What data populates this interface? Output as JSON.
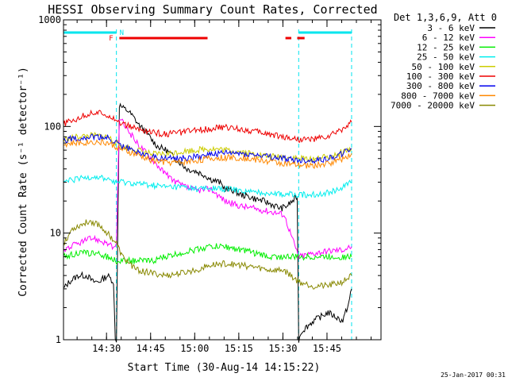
{
  "colors": {
    "axis": "#000000",
    "cyan_marker": "#00e5ee",
    "flag_red": "#ee0000"
  },
  "chart_data": {
    "type": "line",
    "title": "HESSI Observing Summary Count Rates, Corrected",
    "xlabel": "Start Time (30-Aug-14 14:15:22)",
    "ylabel": "Corrected Count Rate (s⁻¹ detector⁻¹)",
    "yscale": "log",
    "ylim": [
      1,
      1000
    ],
    "y_ticks": [
      1,
      10,
      100,
      1000
    ],
    "y_tick_labels": [
      "1",
      "10",
      "100",
      "1000"
    ],
    "x_unit": "minutes since 14:15:22",
    "xlim": [
      0,
      108
    ],
    "x_ticks": [
      14.63,
      29.63,
      44.63,
      59.63,
      74.63,
      89.63
    ],
    "x_tick_labels": [
      "14:30",
      "14:45",
      "15:00",
      "15:15",
      "15:30",
      "15:45"
    ],
    "legend_title": "Det 1,3,6,9, Att 0",
    "legend_position": "outside-right",
    "footer": "25-Jan-2017 00:31",
    "flags": {
      "F_label": "F",
      "N_label": "N",
      "flare_segments": [
        [
          19,
          49
        ],
        [
          75.5,
          77.5
        ],
        [
          79.5,
          82
        ]
      ],
      "night_segments": [
        [
          0,
          18
        ],
        [
          80,
          98
        ]
      ],
      "night_boundaries": [
        18,
        80,
        98
      ]
    },
    "series": [
      {
        "name": "3 - 6 keV",
        "color": "#000000",
        "x": [
          0,
          2,
          5,
          8,
          10,
          12,
          15,
          17,
          17.6,
          18,
          19,
          20,
          22,
          24,
          26,
          28,
          30,
          32,
          35,
          38,
          40,
          42,
          45,
          48,
          50,
          53,
          55,
          58,
          60,
          63,
          65,
          68,
          70,
          72,
          74,
          76,
          78,
          79.5,
          80,
          81,
          85,
          90,
          95,
          97,
          98
        ],
        "y": [
          3,
          3.5,
          4,
          4,
          3.5,
          3.5,
          4,
          3.5,
          1,
          1,
          160,
          150,
          140,
          120,
          100,
          90,
          75,
          65,
          60,
          50,
          45,
          40,
          38,
          35,
          32,
          30,
          26,
          25,
          23,
          22,
          21,
          20,
          19,
          18,
          17,
          18,
          20,
          22,
          1,
          1.2,
          1.5,
          1.8,
          1.5,
          2.2,
          3
        ]
      },
      {
        "name": "6 - 12 keV",
        "color": "#ff00ff",
        "x": [
          0,
          5,
          10,
          15,
          17.6,
          18,
          19,
          20,
          25,
          30,
          35,
          40,
          45,
          50,
          55,
          60,
          65,
          70,
          75,
          80,
          85,
          90,
          95,
          98
        ],
        "y": [
          7,
          8,
          9,
          8,
          7,
          8,
          120,
          110,
          70,
          50,
          35,
          28,
          25,
          26,
          20,
          18,
          17,
          16,
          15,
          6,
          6.5,
          6.8,
          7,
          7.5
        ]
      },
      {
        "name": "12 - 25 keV",
        "color": "#00ee00",
        "x": [
          0,
          5,
          10,
          15,
          18,
          20,
          25,
          30,
          35,
          40,
          45,
          50,
          55,
          60,
          65,
          70,
          75,
          80,
          85,
          90,
          95,
          98
        ],
        "y": [
          6,
          6.5,
          6.5,
          6,
          5.5,
          5.5,
          5.5,
          5.5,
          6,
          6.5,
          7,
          7.5,
          7.5,
          7,
          6.5,
          6,
          6,
          6,
          6,
          6,
          6,
          6
        ]
      },
      {
        "name": "25 - 50 keV",
        "color": "#00eeee",
        "x": [
          0,
          5,
          10,
          15,
          18,
          20,
          25,
          30,
          35,
          40,
          45,
          50,
          55,
          60,
          65,
          70,
          75,
          80,
          85,
          90,
          95,
          98
        ],
        "y": [
          30,
          32,
          34,
          32,
          30,
          30,
          29,
          28,
          27,
          27,
          26,
          26,
          26,
          25,
          24,
          24,
          23,
          23,
          23,
          24,
          27,
          30
        ]
      },
      {
        "name": "50 - 100 keV",
        "color": "#cccc00",
        "x": [
          0,
          5,
          10,
          15,
          18,
          20,
          25,
          30,
          35,
          40,
          45,
          50,
          55,
          60,
          65,
          70,
          75,
          80,
          85,
          90,
          95,
          98
        ],
        "y": [
          75,
          80,
          82,
          80,
          70,
          65,
          60,
          55,
          55,
          58,
          60,
          62,
          60,
          58,
          55,
          52,
          52,
          50,
          50,
          52,
          58,
          62
        ]
      },
      {
        "name": "100 - 300 keV",
        "color": "#ee0000",
        "x": [
          0,
          5,
          10,
          15,
          18,
          20,
          25,
          30,
          35,
          40,
          45,
          50,
          55,
          60,
          65,
          70,
          75,
          80,
          85,
          90,
          95,
          98
        ],
        "y": [
          105,
          120,
          135,
          130,
          115,
          105,
          95,
          88,
          85,
          88,
          92,
          96,
          98,
          95,
          90,
          85,
          80,
          76,
          76,
          80,
          95,
          110
        ]
      },
      {
        "name": "300 - 800 keV",
        "color": "#0000ee",
        "x": [
          0,
          5,
          10,
          15,
          18,
          20,
          25,
          30,
          35,
          40,
          45,
          50,
          55,
          60,
          65,
          70,
          75,
          80,
          85,
          90,
          95,
          98
        ],
        "y": [
          75,
          78,
          80,
          78,
          70,
          65,
          58,
          52,
          50,
          50,
          52,
          55,
          56,
          56,
          54,
          52,
          50,
          48,
          48,
          50,
          56,
          62
        ]
      },
      {
        "name": "800 - 7000 keV",
        "color": "#ff8800",
        "x": [
          0,
          5,
          10,
          15,
          18,
          20,
          25,
          30,
          35,
          40,
          45,
          50,
          55,
          60,
          65,
          70,
          75,
          80,
          85,
          90,
          95,
          98
        ],
        "y": [
          68,
          70,
          72,
          70,
          64,
          60,
          54,
          48,
          46,
          46,
          48,
          50,
          51,
          51,
          49,
          47,
          45,
          43,
          43,
          45,
          50,
          56
        ]
      },
      {
        "name": "7000 - 20000 keV",
        "color": "#888800",
        "x": [
          0,
          3,
          6,
          9,
          12,
          15,
          18,
          20,
          25,
          30,
          35,
          40,
          45,
          50,
          55,
          60,
          65,
          70,
          75,
          80,
          85,
          90,
          95,
          98
        ],
        "y": [
          8,
          11,
          12,
          13,
          12,
          10,
          8,
          6,
          4.5,
          4.2,
          4,
          4.2,
          4.5,
          5,
          5.2,
          5,
          4.8,
          4.5,
          4.5,
          3.5,
          3.2,
          3.2,
          3.5,
          4
        ]
      }
    ]
  }
}
